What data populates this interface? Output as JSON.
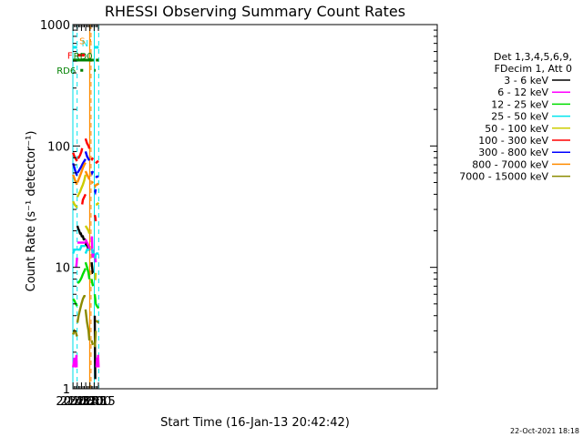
{
  "chart_data": {
    "type": "line",
    "title": "RHESSI Observing Summary Count Rates",
    "xlabel": "Start Time (16-Jan-13 20:42:42)",
    "ylabel": "Count Rate (s⁻¹ detector⁻¹)",
    "yscale": "log",
    "xlim": [
      44.5,
      1336
    ],
    "ylim": [
      1,
      1000
    ],
    "x_unit": "minutes after 20:00",
    "xticks": [
      {
        "x": 45,
        "label": "20:45"
      },
      {
        "x": 60,
        "label": "21:00"
      },
      {
        "x": 75,
        "label": "21:15"
      },
      {
        "x": 90,
        "label": "21:30"
      },
      {
        "x": 105,
        "label": "21:45"
      },
      {
        "x": 120,
        "label": "22:00"
      },
      {
        "x": 135,
        "label": "22:15"
      }
    ],
    "yticks": [
      {
        "y": 1,
        "label": "1"
      },
      {
        "y": 10,
        "label": "10"
      },
      {
        "y": 100,
        "label": "100"
      },
      {
        "y": 1000,
        "label": "1000"
      }
    ],
    "legend_header": [
      "Det 1,3,4,5,6,9,",
      "FDecim 1, Att 0"
    ],
    "legend_position": "right",
    "series": [
      {
        "name": "3 - 6 keV",
        "color": "#000000",
        "segments": [
          {
            "x": [
              60.5,
              63,
              67,
              70,
              73,
              76,
              80,
              83,
              86,
              89.5
            ],
            "y": [
              22,
              21,
              20,
              19,
              19,
              18,
              18,
              17,
              17,
              17
            ]
          },
          {
            "x": [
              89.5,
              92,
              96,
              100,
              103
            ],
            "y": [
              15,
              16,
              15,
              14,
              14
            ]
          },
          {
            "x": [
              111,
              113,
              115,
              116
            ],
            "y": [
              11,
              10,
              9,
              9
            ]
          },
          {
            "x": [
              122,
              123,
              124
            ],
            "y": [
              4,
              2,
              1.2
            ]
          }
        ]
      },
      {
        "name": "6 - 12 keV",
        "color": "#ff00ff",
        "segments": [
          {
            "x": [
              45,
              50,
              54,
              57,
              58
            ],
            "y": [
              1.5,
              1.8,
              1.5,
              1.9,
              1.5
            ]
          },
          {
            "x": [
              56,
              58,
              59.5
            ],
            "y": [
              10,
              11,
              12
            ]
          },
          {
            "x": [
              60.5,
              65,
              70,
              75,
              80,
              85,
              89.5
            ],
            "y": [
              16,
              16,
              16,
              16,
              16,
              16,
              16
            ]
          },
          {
            "x": [
              89.5,
              95,
              100,
              103
            ],
            "y": [
              17,
              16,
              15,
              14
            ]
          },
          {
            "x": [
              111,
              112,
              113,
              114,
              115,
              116
            ],
            "y": [
              17,
              18,
              15,
              13,
              12,
              14
            ]
          },
          {
            "x": [
              122,
              124,
              125.5
            ],
            "y": [
              13,
              12,
              11
            ]
          },
          {
            "x": [
              128,
              130,
              132,
              134,
              136
            ],
            "y": [
              1.5,
              1.8,
              1.6,
              1.9,
              1.5
            ]
          }
        ]
      },
      {
        "name": "12 - 25 keV",
        "color": "#00dd00",
        "segments": [
          {
            "x": [
              45,
              50,
              55,
              59.5
            ],
            "y": [
              5.5,
              5.3,
              5.0,
              4.8
            ]
          },
          {
            "x": [
              60.5,
              65,
              70,
              75,
              80,
              85,
              89.5
            ],
            "y": [
              7.5,
              7.5,
              7.8,
              8.2,
              8.8,
              9.3,
              9.8
            ]
          },
          {
            "x": [
              89.5,
              95,
              100,
              103
            ],
            "y": [
              11,
              10,
              9,
              8
            ]
          },
          {
            "x": [
              111,
              113,
              116
            ],
            "y": [
              8,
              7.5,
              7
            ]
          },
          {
            "x": [
              122,
              124,
              125.5
            ],
            "y": [
              6,
              5.5,
              5
            ]
          },
          {
            "x": [
              125.5,
              130,
              136
            ],
            "y": [
              5,
              4.8,
              4.6
            ]
          }
        ]
      },
      {
        "name": "25 - 50 keV",
        "color": "#00e5ee",
        "segments": [
          {
            "x": [
              45,
              50,
              55,
              59.5
            ],
            "y": [
              13,
              14,
              14,
              14
            ]
          },
          {
            "x": [
              60.5,
              65,
              70,
              75,
              80,
              85,
              89.5
            ],
            "y": [
              14,
              14,
              14,
              15,
              15,
              15,
              15
            ]
          },
          {
            "x": [
              89.5,
              95,
              100,
              103
            ],
            "y": [
              13,
              14,
              14,
              14
            ]
          },
          {
            "x": [
              111,
              113,
              116
            ],
            "y": [
              14,
              14,
              13
            ]
          },
          {
            "x": [
              122,
              124,
              125.5
            ],
            "y": [
              12,
              12,
              13
            ]
          },
          {
            "x": [
              125.5,
              130,
              136
            ],
            "y": [
              13,
              13,
              13
            ]
          }
        ]
      },
      {
        "name": "50 - 100 keV",
        "color": "#cccc00",
        "segments": [
          {
            "x": [
              45,
              50,
              55,
              59.5
            ],
            "y": [
              35,
              33,
              32,
              31
            ]
          },
          {
            "x": [
              60.5,
              65,
              70,
              75,
              80,
              85,
              89.5
            ],
            "y": [
              38,
              40,
              42,
              45,
              48,
              52,
              58
            ]
          },
          {
            "x": [
              89.5,
              95,
              100,
              103
            ],
            "y": [
              22,
              21,
              20,
              19
            ]
          },
          {
            "x": [
              122,
              124,
              125.5
            ],
            "y": [
              8,
              8,
              9
            ]
          },
          {
            "x": [
              125.5,
              130,
              136
            ],
            "y": [
              33,
              33,
              34
            ]
          }
        ]
      },
      {
        "name": "100 - 300 keV",
        "color": "#ff0000",
        "segments": [
          {
            "x": [
              45,
              50,
              55,
              59.5
            ],
            "y": [
              88,
              82,
              78,
              75
            ]
          },
          {
            "x": [
              60.5,
              65,
              70,
              75,
              77.5
            ],
            "y": [
              80,
              80,
              84,
              90,
              96
            ]
          },
          {
            "x": [
              77.5,
              80,
              85,
              89.5
            ],
            "y": [
              33,
              36,
              38,
              40
            ]
          },
          {
            "x": [
              89.5,
              95,
              100,
              103
            ],
            "y": [
              115,
              105,
              100,
              95
            ]
          },
          {
            "x": [
              111,
              113,
              116
            ],
            "y": [
              80,
              78,
              80
            ]
          },
          {
            "x": [
              122,
              124,
              125.5
            ],
            "y": [
              27,
              26,
              24
            ]
          },
          {
            "x": [
              125.5,
              130,
              136
            ],
            "y": [
              72,
              74,
              75
            ]
          }
        ]
      },
      {
        "name": "300 - 800 keV",
        "color": "#0000ff",
        "segments": [
          {
            "x": [
              45,
              50,
              55,
              59.5
            ],
            "y": [
              72,
              66,
              60,
              57
            ]
          },
          {
            "x": [
              60.5,
              65,
              70,
              75,
              80,
              85,
              89.5
            ],
            "y": [
              60,
              62,
              65,
              68,
              72,
              75,
              78
            ]
          },
          {
            "x": [
              89.5,
              95,
              100,
              103
            ],
            "y": [
              90,
              82,
              78,
              76
            ]
          },
          {
            "x": [
              111,
              113,
              116
            ],
            "y": [
              62,
              60,
              62
            ]
          },
          {
            "x": [
              122,
              124,
              125.5
            ],
            "y": [
              43,
              42,
              44
            ]
          },
          {
            "x": [
              125.5,
              130,
              136
            ],
            "y": [
              55,
              56,
              56
            ]
          }
        ]
      },
      {
        "name": "800 - 7000 keV",
        "color": "#ff8c00",
        "segments": [
          {
            "x": [
              45,
              50,
              55,
              59.5
            ],
            "y": [
              58,
              54,
              50,
              48
            ]
          },
          {
            "x": [
              60.5,
              65,
              70,
              75,
              80,
              85,
              89.5
            ],
            "y": [
              50,
              53,
              57,
              61,
              66,
              70,
              73
            ]
          },
          {
            "x": [
              89.5,
              95,
              100,
              103
            ],
            "y": [
              62,
              58,
              55,
              53
            ]
          },
          {
            "x": [
              111,
              113,
              116
            ],
            "y": [
              50,
              50,
              51
            ]
          },
          {
            "x": [
              122,
              124,
              125.5
            ],
            "y": [
              48,
              47,
              48
            ]
          },
          {
            "x": [
              125.5,
              130,
              136
            ],
            "y": [
              48,
              48,
              49
            ]
          }
        ]
      },
      {
        "name": "7000 - 15000 keV",
        "color": "#8b8b00",
        "segments": [
          {
            "x": [
              45,
              50,
              55,
              59.5
            ],
            "y": [
              2.8,
              3.0,
              2.9,
              2.7
            ]
          },
          {
            "x": [
              60.5,
              65,
              70,
              75,
              80,
              85,
              89.5
            ],
            "y": [
              3.5,
              4.0,
              4.5,
              5.0,
              5.5,
              5.8,
              5.8
            ]
          },
          {
            "x": [
              89.5,
              95,
              100,
              103
            ],
            "y": [
              4.5,
              3.5,
              3.0,
              2.5
            ]
          },
          {
            "x": [
              111,
              113,
              116
            ],
            "y": [
              2.5,
              2.4,
              2.3
            ]
          },
          {
            "x": [
              122,
              124,
              125.5
            ],
            "y": [
              2.2,
              2.5,
              3.0
            ]
          },
          {
            "x": [
              125.5,
              130,
              136
            ],
            "y": [
              3.6,
              3.6,
              3.5
            ]
          }
        ]
      }
    ],
    "vlines": [
      {
        "x": 44.6,
        "color": "#00e5ee",
        "style": "solid"
      },
      {
        "x": 59.6,
        "color": "#00e5ee",
        "style": "dashed"
      },
      {
        "x": 120.4,
        "color": "#00e5ee",
        "style": "solid"
      },
      {
        "x": 136,
        "color": "#00e5ee",
        "style": "dashed"
      },
      {
        "x": 103.8,
        "color": "#ff8c00",
        "style": "solid"
      },
      {
        "x": 104.6,
        "color": "#ff8c00",
        "style": "solid"
      },
      {
        "x": 108.9,
        "color": "#ff8c00",
        "style": "dashed"
      }
    ],
    "bars": [
      {
        "label": "N",
        "color": "#00e5ee",
        "y": 650,
        "segments": [
          [
            44.6,
            59.6
          ],
          [
            120.4,
            136
          ]
        ]
      },
      {
        "label": "F",
        "color": "#ff0000",
        "y": 560,
        "segments": [
          [
            59.6,
            86.5
          ]
        ]
      },
      {
        "label": "S",
        "color": "#ff8c00",
        "y": 740,
        "segments": [
          [
            104.3,
            108.9
          ]
        ]
      },
      {
        "label": "RD0",
        "color": "#008000",
        "y": 510,
        "segments": [
          [
            44.6,
            118.5
          ],
          [
            126,
            136
          ]
        ]
      },
      {
        "label": "RD6",
        "color": "#008000",
        "y": 420,
        "segments": [
          [
            71,
            81
          ]
        ]
      },
      {
        "label": "",
        "color": "#008000",
        "y": 420,
        "segments": [
          [
            120.4,
            125
          ]
        ]
      }
    ]
  },
  "footer": {
    "timestamp": "22-Oct-2021 18:18"
  }
}
